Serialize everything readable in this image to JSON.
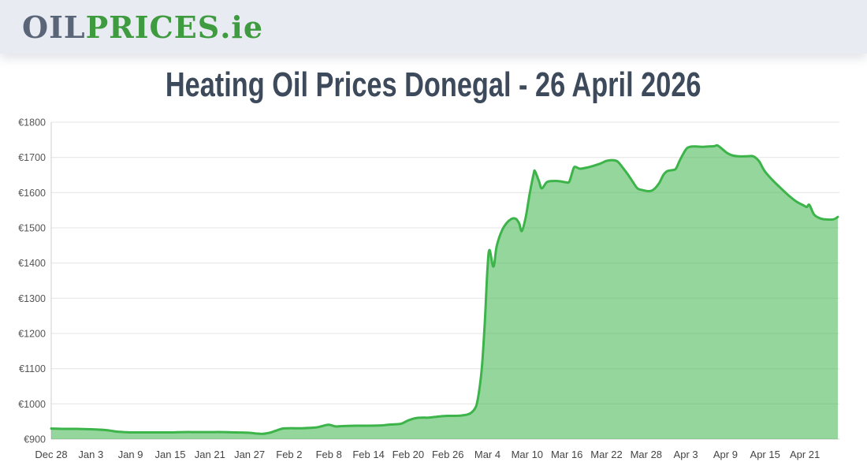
{
  "header": {
    "logo": {
      "part1": "OIL",
      "part2": "PRICES",
      "part3": ".ie"
    }
  },
  "title": "Heating Oil Prices Donegal - 26 April 2026",
  "colors": {
    "header_bg": "#e8ebf2",
    "logo_gray": "#5a6577",
    "logo_green": "#3f9b3f",
    "title_text": "#3d4a5b",
    "line_green": "#3cb44a",
    "area_fill": "rgba(61,180,74,0.55)",
    "grid_line": "#e4e4e4",
    "axis_line": "#cfcfcf",
    "tick_text": "#555555"
  },
  "chart_data": {
    "type": "area",
    "title": "Heating Oil Prices Donegal - 26 April 2026",
    "xlabel": "",
    "ylabel": "",
    "currency_prefix": "€",
    "ylim": [
      900,
      1800
    ],
    "ytick_step": 100,
    "ytick_labels": [
      "€900",
      "€1000",
      "€1100",
      "€1200",
      "€1300",
      "€1400",
      "€1500",
      "€1600",
      "€1700",
      "€1800"
    ],
    "x_range_days": [
      0,
      119
    ],
    "xticks": [
      {
        "day": 0,
        "label": "Dec 28"
      },
      {
        "day": 6,
        "label": "Jan 3"
      },
      {
        "day": 12,
        "label": "Jan 9"
      },
      {
        "day": 18,
        "label": "Jan 15"
      },
      {
        "day": 24,
        "label": "Jan 21"
      },
      {
        "day": 30,
        "label": "Jan 27"
      },
      {
        "day": 36,
        "label": "Feb 2"
      },
      {
        "day": 42,
        "label": "Feb 8"
      },
      {
        "day": 48,
        "label": "Feb 14"
      },
      {
        "day": 54,
        "label": "Feb 20"
      },
      {
        "day": 60,
        "label": "Feb 26"
      },
      {
        "day": 66,
        "label": "Mar 4"
      },
      {
        "day": 72,
        "label": "Mar 10"
      },
      {
        "day": 78,
        "label": "Mar 16"
      },
      {
        "day": 84,
        "label": "Mar 22"
      },
      {
        "day": 90,
        "label": "Mar 28"
      },
      {
        "day": 96,
        "label": "Apr 3"
      },
      {
        "day": 102,
        "label": "Apr 9"
      },
      {
        "day": 108,
        "label": "Apr 15"
      },
      {
        "day": 114,
        "label": "Apr 21"
      }
    ],
    "grid": "horizontal",
    "legend": "none",
    "points": [
      [
        0,
        930
      ],
      [
        2,
        929
      ],
      [
        4,
        929
      ],
      [
        6,
        928
      ],
      [
        8,
        926
      ],
      [
        9,
        924
      ],
      [
        10,
        921
      ],
      [
        11,
        920
      ],
      [
        12,
        919
      ],
      [
        14,
        919
      ],
      [
        16,
        919
      ],
      [
        18,
        919
      ],
      [
        20,
        920
      ],
      [
        22,
        920
      ],
      [
        24,
        920
      ],
      [
        26,
        920
      ],
      [
        28,
        919
      ],
      [
        30,
        918
      ],
      [
        31,
        916
      ],
      [
        32,
        915
      ],
      [
        33,
        918
      ],
      [
        34,
        924
      ],
      [
        35,
        930
      ],
      [
        36,
        931
      ],
      [
        38,
        931
      ],
      [
        40,
        933
      ],
      [
        41,
        937
      ],
      [
        42,
        941
      ],
      [
        43,
        936
      ],
      [
        44,
        937
      ],
      [
        46,
        938
      ],
      [
        48,
        938
      ],
      [
        50,
        939
      ],
      [
        51,
        941
      ],
      [
        52,
        942
      ],
      [
        53,
        944
      ],
      [
        54,
        953
      ],
      [
        55,
        959
      ],
      [
        56,
        961
      ],
      [
        57,
        961
      ],
      [
        58,
        963
      ],
      [
        59,
        965
      ],
      [
        60,
        966
      ],
      [
        61,
        966
      ],
      [
        62,
        967
      ],
      [
        63,
        970
      ],
      [
        63.6,
        976
      ],
      [
        64.3,
        995
      ],
      [
        64.8,
        1045
      ],
      [
        65.2,
        1115
      ],
      [
        65.6,
        1235
      ],
      [
        66,
        1385
      ],
      [
        66.3,
        1437
      ],
      [
        66.9,
        1390
      ],
      [
        67.4,
        1449
      ],
      [
        68.2,
        1493
      ],
      [
        69,
        1516
      ],
      [
        69.6,
        1525
      ],
      [
        70,
        1527
      ],
      [
        70.4,
        1524
      ],
      [
        70.8,
        1512
      ],
      [
        71.2,
        1491
      ],
      [
        71.8,
        1532
      ],
      [
        72.4,
        1599
      ],
      [
        73,
        1655
      ],
      [
        73.2,
        1660
      ],
      [
        73.8,
        1632
      ],
      [
        74.2,
        1612
      ],
      [
        75,
        1630
      ],
      [
        76,
        1633
      ],
      [
        77,
        1632
      ],
      [
        78,
        1629
      ],
      [
        78.4,
        1632
      ],
      [
        79,
        1668
      ],
      [
        79.3,
        1673
      ],
      [
        80,
        1668
      ],
      [
        81,
        1671
      ],
      [
        82,
        1676
      ],
      [
        83,
        1682
      ],
      [
        84,
        1690
      ],
      [
        85,
        1692
      ],
      [
        85.7,
        1688
      ],
      [
        86.5,
        1670
      ],
      [
        87.3,
        1650
      ],
      [
        88,
        1630
      ],
      [
        88.7,
        1612
      ],
      [
        89.5,
        1607
      ],
      [
        90.5,
        1604
      ],
      [
        91.2,
        1610
      ],
      [
        92,
        1628
      ],
      [
        92.6,
        1650
      ],
      [
        93.2,
        1661
      ],
      [
        94,
        1664
      ],
      [
        94.5,
        1668
      ],
      [
        95.1,
        1692
      ],
      [
        96,
        1722
      ],
      [
        96.6,
        1730
      ],
      [
        97.5,
        1731
      ],
      [
        98.5,
        1730
      ],
      [
        99.5,
        1731
      ],
      [
        100.3,
        1732
      ],
      [
        100.8,
        1734
      ],
      [
        101.5,
        1724
      ],
      [
        102.3,
        1712
      ],
      [
        103,
        1706
      ],
      [
        104,
        1703
      ],
      [
        105,
        1703
      ],
      [
        106,
        1704
      ],
      [
        106.5,
        1700
      ],
      [
        107.1,
        1689
      ],
      [
        107.9,
        1662
      ],
      [
        109.1,
        1636
      ],
      [
        110.3,
        1614
      ],
      [
        111.5,
        1593
      ],
      [
        112.7,
        1575
      ],
      [
        113.9,
        1563
      ],
      [
        114.3,
        1559
      ],
      [
        114.7,
        1565
      ],
      [
        115.4,
        1538
      ],
      [
        116.3,
        1527
      ],
      [
        117.1,
        1524
      ],
      [
        118.3,
        1524
      ],
      [
        119,
        1531
      ]
    ]
  }
}
